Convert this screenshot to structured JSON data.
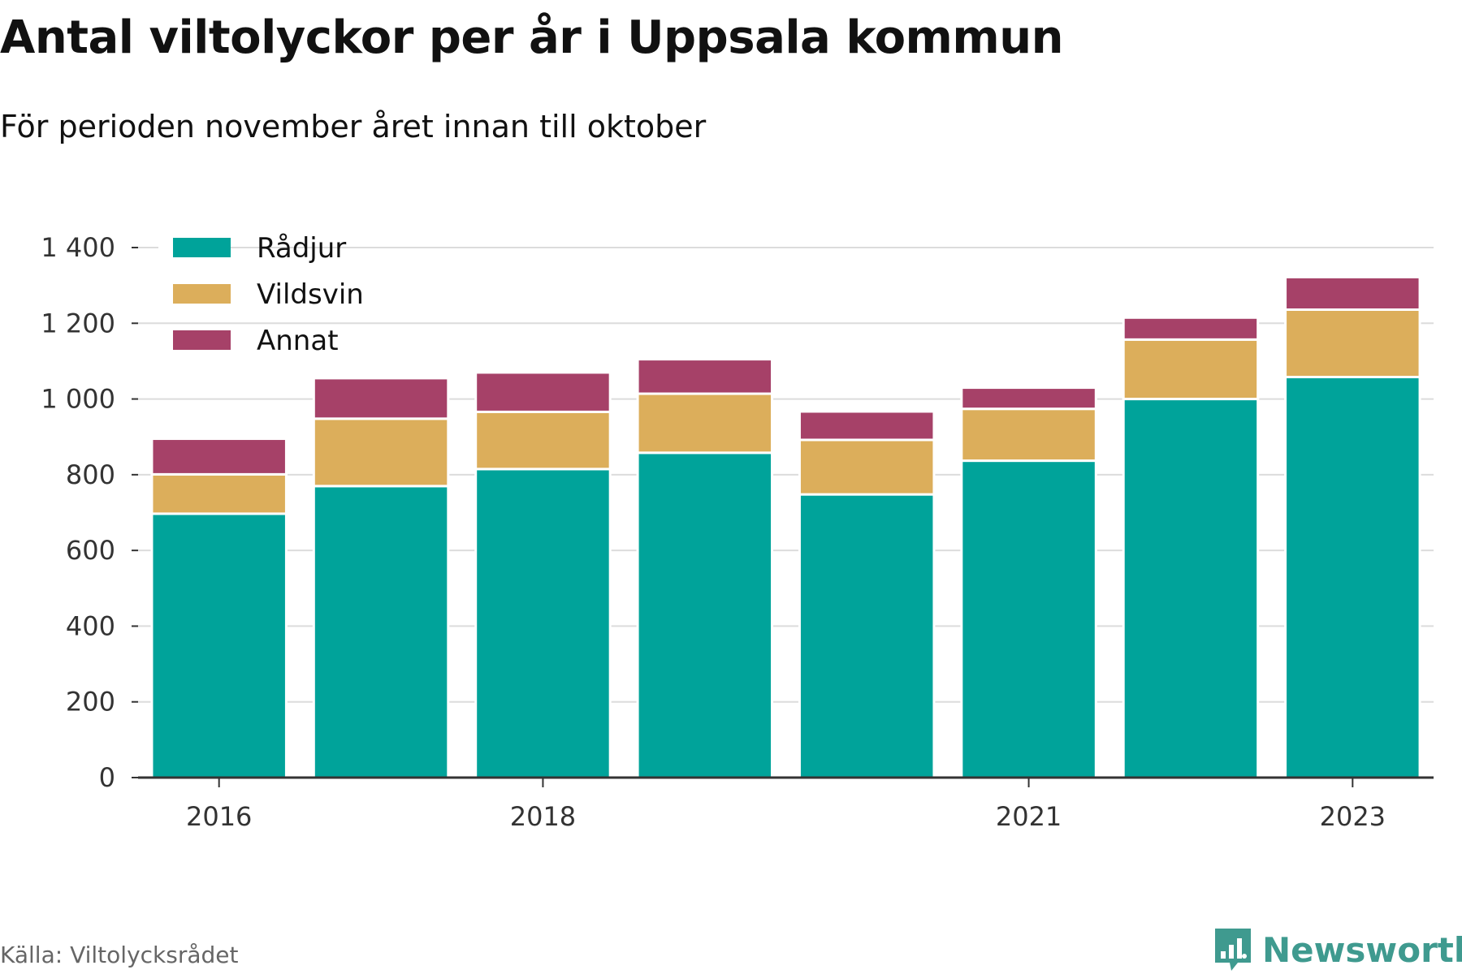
{
  "title": "Antal viltolyckor per år i Uppsala kommun",
  "subtitle": "För perioden november året innan till oktober",
  "source": "Källa: Viltolycksrådet",
  "brand": {
    "name": "Newsworthy",
    "icon": "newsworthy-logo-icon",
    "color": "#3f9a8f"
  },
  "chart_data": {
    "type": "bar",
    "stacked": true,
    "categories": [
      "2016",
      "2017",
      "2018",
      "2019",
      "2020",
      "2021",
      "2022",
      "2023"
    ],
    "x_tick_labels": [
      "2016",
      "",
      "2018",
      "",
      "",
      "2021",
      "",
      "2023"
    ],
    "series": [
      {
        "name": "Rådjur",
        "color": "#00a39a",
        "values": [
          697,
          770,
          815,
          858,
          748,
          837,
          1000,
          1058
        ]
      },
      {
        "name": "Vildsvin",
        "color": "#dcae5b",
        "values": [
          104,
          178,
          151,
          156,
          144,
          137,
          157,
          178
        ]
      },
      {
        "name": "Annat",
        "color": "#a64168",
        "values": [
          94,
          107,
          104,
          91,
          75,
          56,
          58,
          86
        ]
      }
    ],
    "ylim": [
      0,
      1400
    ],
    "yticks": [
      0,
      200,
      400,
      600,
      800,
      1000,
      1200,
      1400
    ],
    "ytick_labels": [
      "0",
      "200",
      "400",
      "600",
      "800",
      "1 000",
      "1 200",
      "1 400"
    ],
    "grid": true,
    "legend_position": "top-left"
  }
}
